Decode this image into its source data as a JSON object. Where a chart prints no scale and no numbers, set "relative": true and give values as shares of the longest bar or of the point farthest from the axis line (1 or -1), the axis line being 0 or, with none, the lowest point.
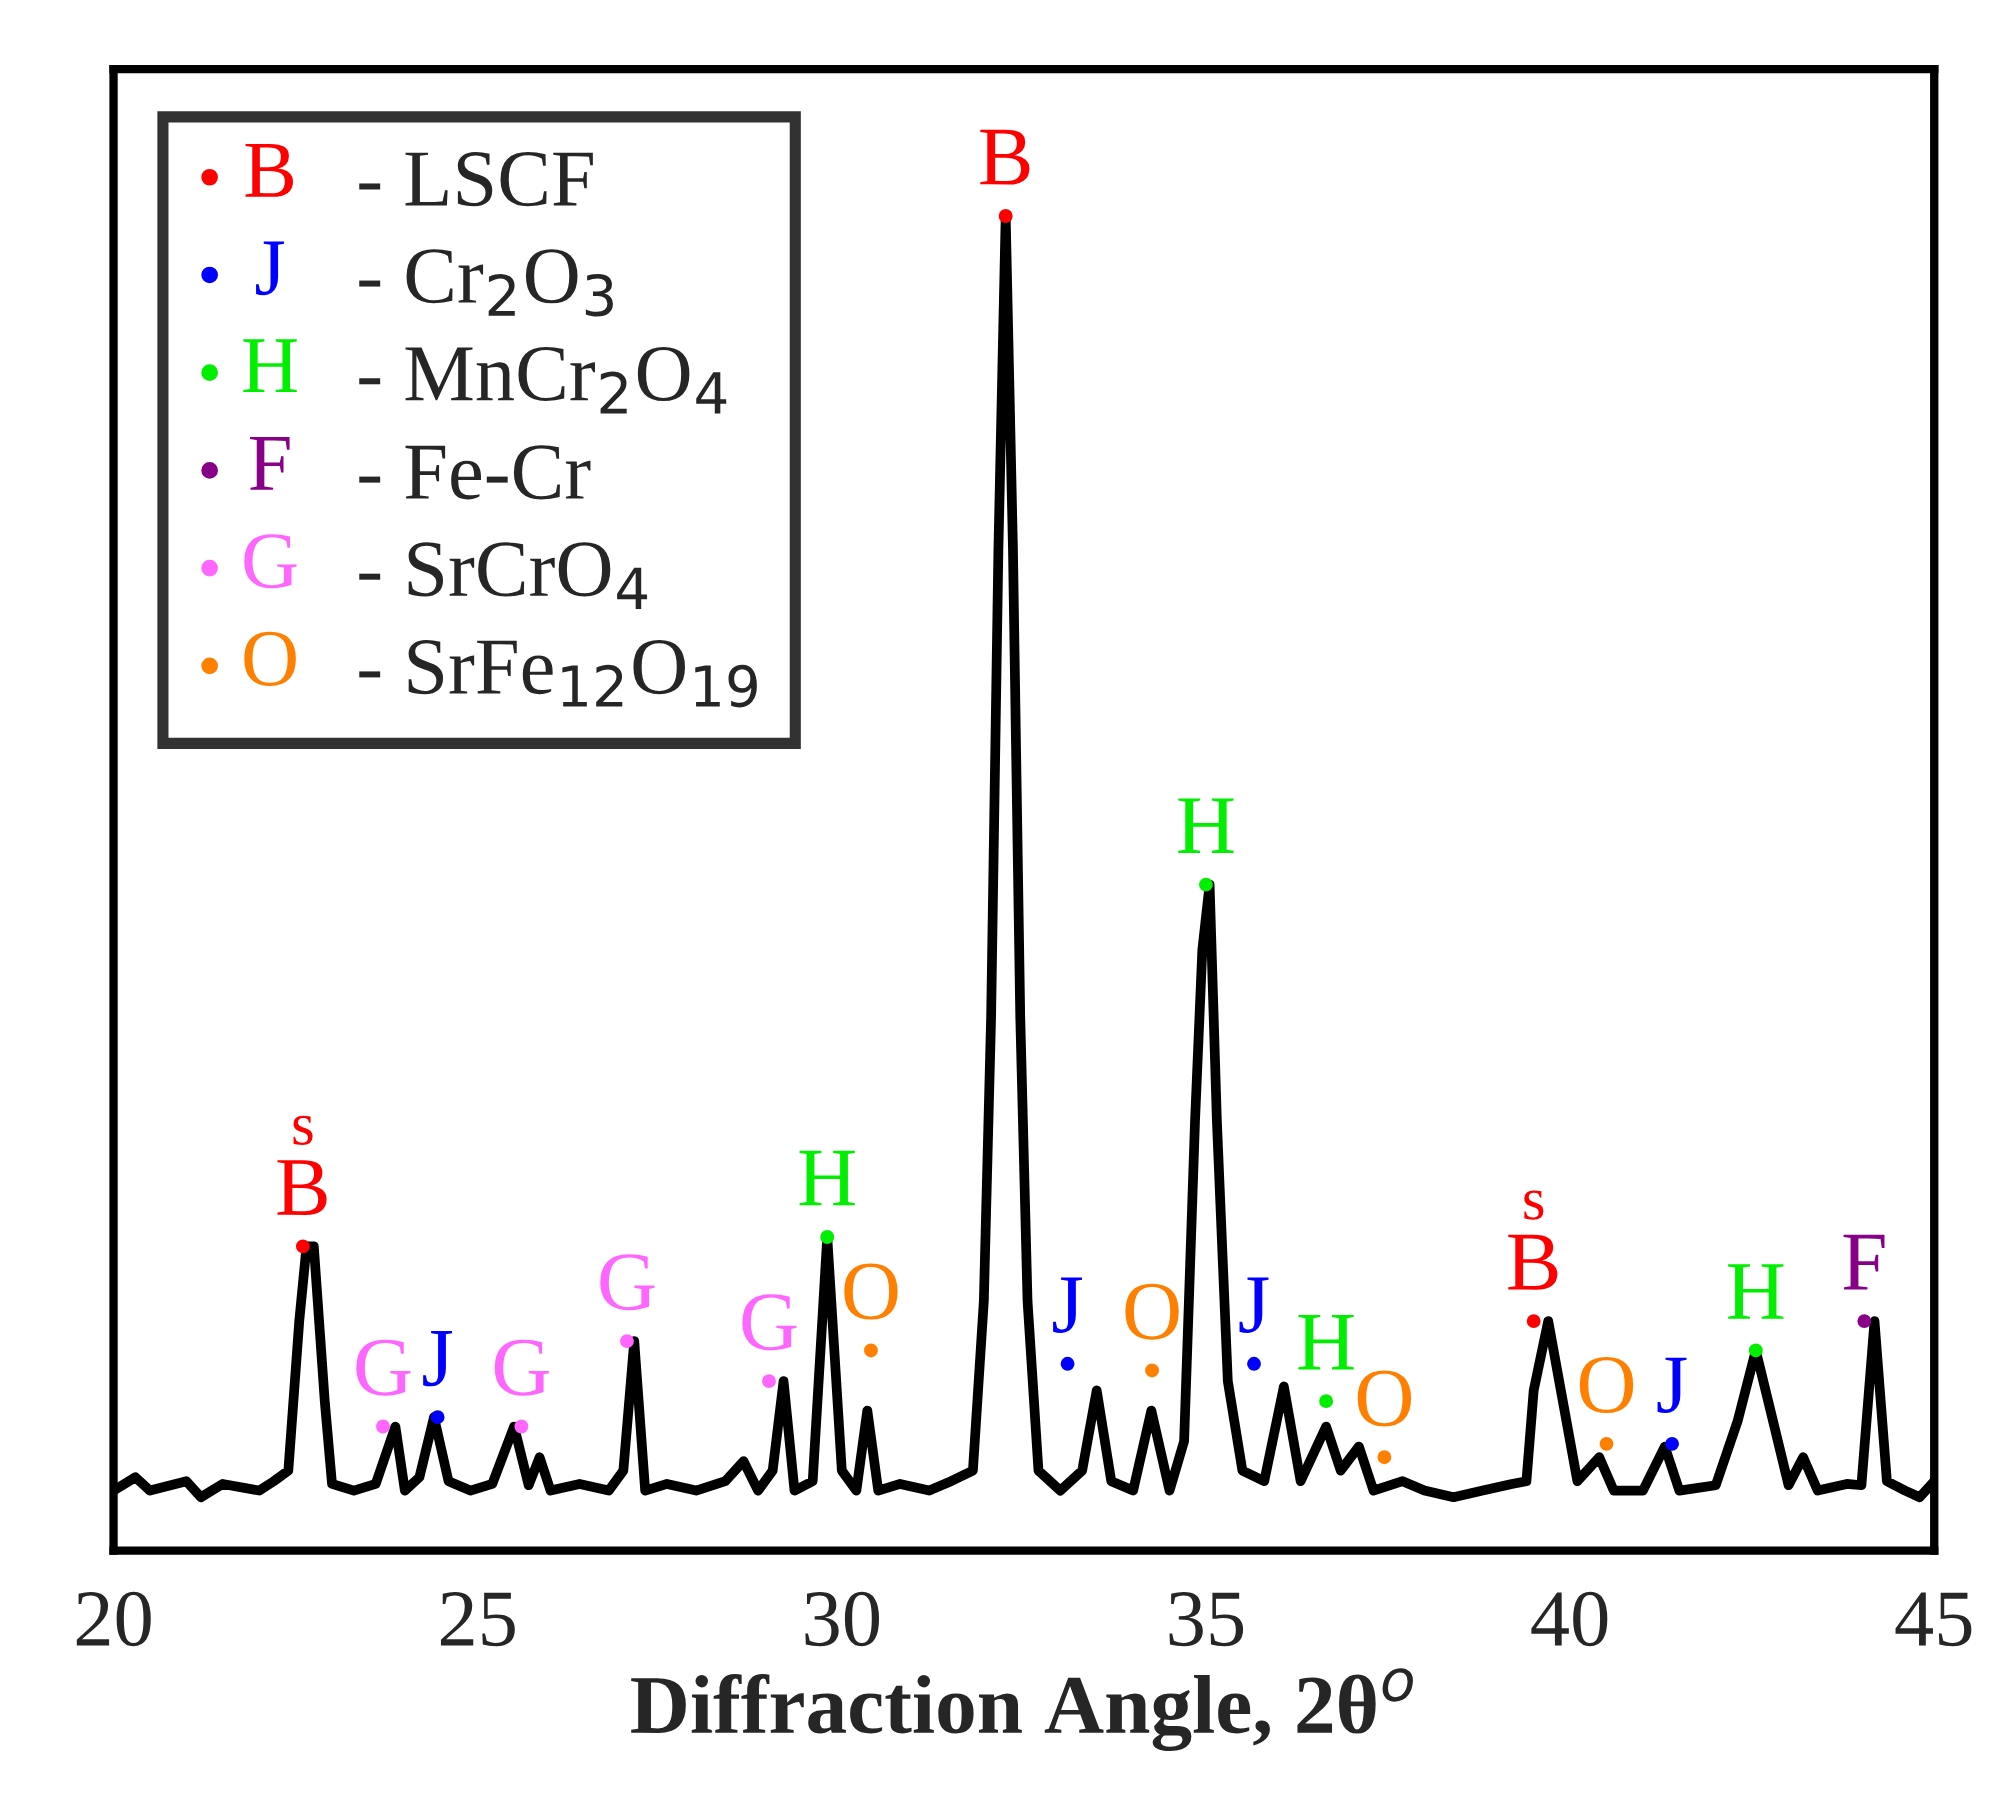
{
  "chart_data": {
    "type": "line",
    "relative": true,
    "xlabel": "Diffraction Angle, 2θ$^{o}$",
    "xlim": [
      20,
      45
    ],
    "xticks": [
      20,
      25,
      30,
      35,
      40,
      45
    ],
    "grid": false,
    "legend": "top left",
    "series": [
      {
        "color": "#000000",
        "x": [
          20.0,
          20.3,
          20.5,
          21.0,
          21.2,
          21.5,
          22.0,
          22.2,
          22.4,
          22.55,
          22.65,
          22.75,
          22.9,
          23.0,
          23.3,
          23.6,
          23.87,
          24.0,
          24.2,
          24.4,
          24.6,
          24.9,
          25.2,
          25.5,
          25.7,
          25.85,
          26.0,
          26.4,
          26.8,
          27.0,
          27.15,
          27.3,
          27.6,
          28.0,
          28.4,
          28.65,
          28.85,
          29.05,
          29.2,
          29.35,
          29.6,
          29.8,
          30.0,
          30.2,
          30.35,
          30.5,
          30.8,
          31.2,
          31.5,
          31.8,
          31.95,
          32.05,
          32.15,
          32.25,
          32.35,
          32.45,
          32.55,
          32.7,
          33.0,
          33.3,
          33.5,
          33.7,
          34.0,
          34.25,
          34.5,
          34.7,
          34.85,
          34.95,
          35.05,
          35.15,
          35.3,
          35.5,
          35.8,
          36.07,
          36.3,
          36.65,
          36.85,
          37.1,
          37.3,
          37.7,
          38.0,
          38.4,
          38.8,
          39.2,
          39.4,
          39.5,
          39.7,
          39.9,
          40.1,
          40.4,
          40.6,
          41.0,
          41.3,
          41.5,
          42.0,
          42.3,
          42.55,
          42.8,
          43.0,
          43.2,
          43.4,
          43.8,
          44.0,
          44.18,
          44.35,
          44.6,
          44.8,
          45.0
        ],
        "values": [
          0.045,
          0.055,
          0.045,
          0.052,
          0.04,
          0.05,
          0.045,
          0.052,
          0.06,
          0.172,
          0.228,
          0.228,
          0.112,
          0.05,
          0.045,
          0.05,
          0.093,
          0.045,
          0.055,
          0.1,
          0.052,
          0.045,
          0.05,
          0.093,
          0.049,
          0.07,
          0.045,
          0.05,
          0.045,
          0.06,
          0.157,
          0.045,
          0.05,
          0.045,
          0.052,
          0.067,
          0.045,
          0.06,
          0.127,
          0.045,
          0.052,
          0.235,
          0.06,
          0.045,
          0.105,
          0.045,
          0.05,
          0.045,
          0.052,
          0.06,
          0.187,
          0.4,
          0.75,
          1.0,
          0.75,
          0.4,
          0.187,
          0.06,
          0.045,
          0.06,
          0.12,
          0.052,
          0.045,
          0.105,
          0.045,
          0.082,
          0.322,
          0.45,
          0.499,
          0.322,
          0.127,
          0.06,
          0.052,
          0.123,
          0.052,
          0.093,
          0.06,
          0.078,
          0.045,
          0.052,
          0.045,
          0.04,
          0.045,
          0.05,
          0.052,
          0.12,
          0.172,
          0.112,
          0.052,
          0.07,
          0.045,
          0.045,
          0.078,
          0.045,
          0.049,
          0.097,
          0.15,
          0.094,
          0.049,
          0.07,
          0.045,
          0.05,
          0.049,
          0.172,
          0.052,
          0.045,
          0.04,
          0.052
        ]
      },
      {
        "type": "scatter",
        "marker": "circle",
        "name": "- LSCF",
        "color": "#ff0000",
        "x": [
          22.6,
          32.25,
          39.5
        ],
        "values": [
          0.228,
          1.0,
          0.172
        ]
      },
      {
        "type": "scatter",
        "marker": "circle",
        "name": "- Cr$_{2}$O$_{3}$",
        "color": "#0000ff",
        "x": [
          24.45,
          33.1,
          35.66,
          41.4
        ],
        "values": [
          0.1,
          0.14,
          0.14,
          0.08
        ]
      },
      {
        "type": "scatter",
        "marker": "circle",
        "name": "- MnCr$_{2}$O$_{4}$",
        "color": "#00ee00",
        "x": [
          29.8,
          35.0,
          36.65,
          42.55
        ],
        "values": [
          0.235,
          0.499,
          0.112,
          0.15
        ]
      },
      {
        "type": "scatter",
        "marker": "circle",
        "name": "- Fe-Cr",
        "color": "#880088",
        "x": [
          44.04
        ],
        "values": [
          0.172
        ]
      },
      {
        "type": "scatter",
        "marker": "circle",
        "name": "- SrCrO$_{4}$",
        "color": "#ff66ff",
        "x": [
          23.7,
          25.6,
          27.05,
          29.0
        ],
        "values": [
          0.093,
          0.093,
          0.157,
          0.127
        ]
      },
      {
        "type": "scatter",
        "marker": "circle",
        "name": "- SrFe$_{12}$O$_{19}$",
        "color": "#ff8000",
        "x": [
          30.4,
          34.26,
          37.45,
          40.5
        ],
        "values": [
          0.15,
          0.135,
          0.07,
          0.08
        ]
      }
    ],
    "annotations": [
      {
        "text": "B",
        "x": 22.6,
        "y": 0.228
      },
      {
        "text": "s",
        "x": 22.6,
        "y": 0.228
      },
      {
        "text": "G",
        "x": 23.7,
        "y": 0.093
      },
      {
        "text": "J",
        "x": 24.45,
        "y": 0.1
      },
      {
        "text": "G",
        "x": 25.6,
        "y": 0.093
      },
      {
        "text": "G",
        "x": 27.05,
        "y": 0.157
      },
      {
        "text": "G",
        "x": 29.0,
        "y": 0.127
      },
      {
        "text": "H",
        "x": 29.8,
        "y": 0.235
      },
      {
        "text": "O",
        "x": 30.4,
        "y": 0.15
      },
      {
        "text": "B",
        "x": 32.25,
        "y": 1.0
      },
      {
        "text": "J",
        "x": 33.1,
        "y": 0.14
      },
      {
        "text": "O",
        "x": 34.26,
        "y": 0.135
      },
      {
        "text": "H",
        "x": 35.0,
        "y": 0.499
      },
      {
        "text": "J",
        "x": 35.66,
        "y": 0.14
      },
      {
        "text": "H",
        "x": 36.65,
        "y": 0.112
      },
      {
        "text": "O",
        "x": 37.45,
        "y": 0.07
      },
      {
        "text": "B",
        "x": 39.5,
        "y": 0.172
      },
      {
        "text": "s",
        "x": 39.5,
        "y": 0.172
      },
      {
        "text": "O",
        "x": 40.5,
        "y": 0.08
      },
      {
        "text": "J",
        "x": 41.4,
        "y": 0.08
      },
      {
        "text": "H",
        "x": 42.55,
        "y": 0.15
      },
      {
        "text": "F",
        "x": 44.04,
        "y": 0.172
      }
    ]
  }
}
